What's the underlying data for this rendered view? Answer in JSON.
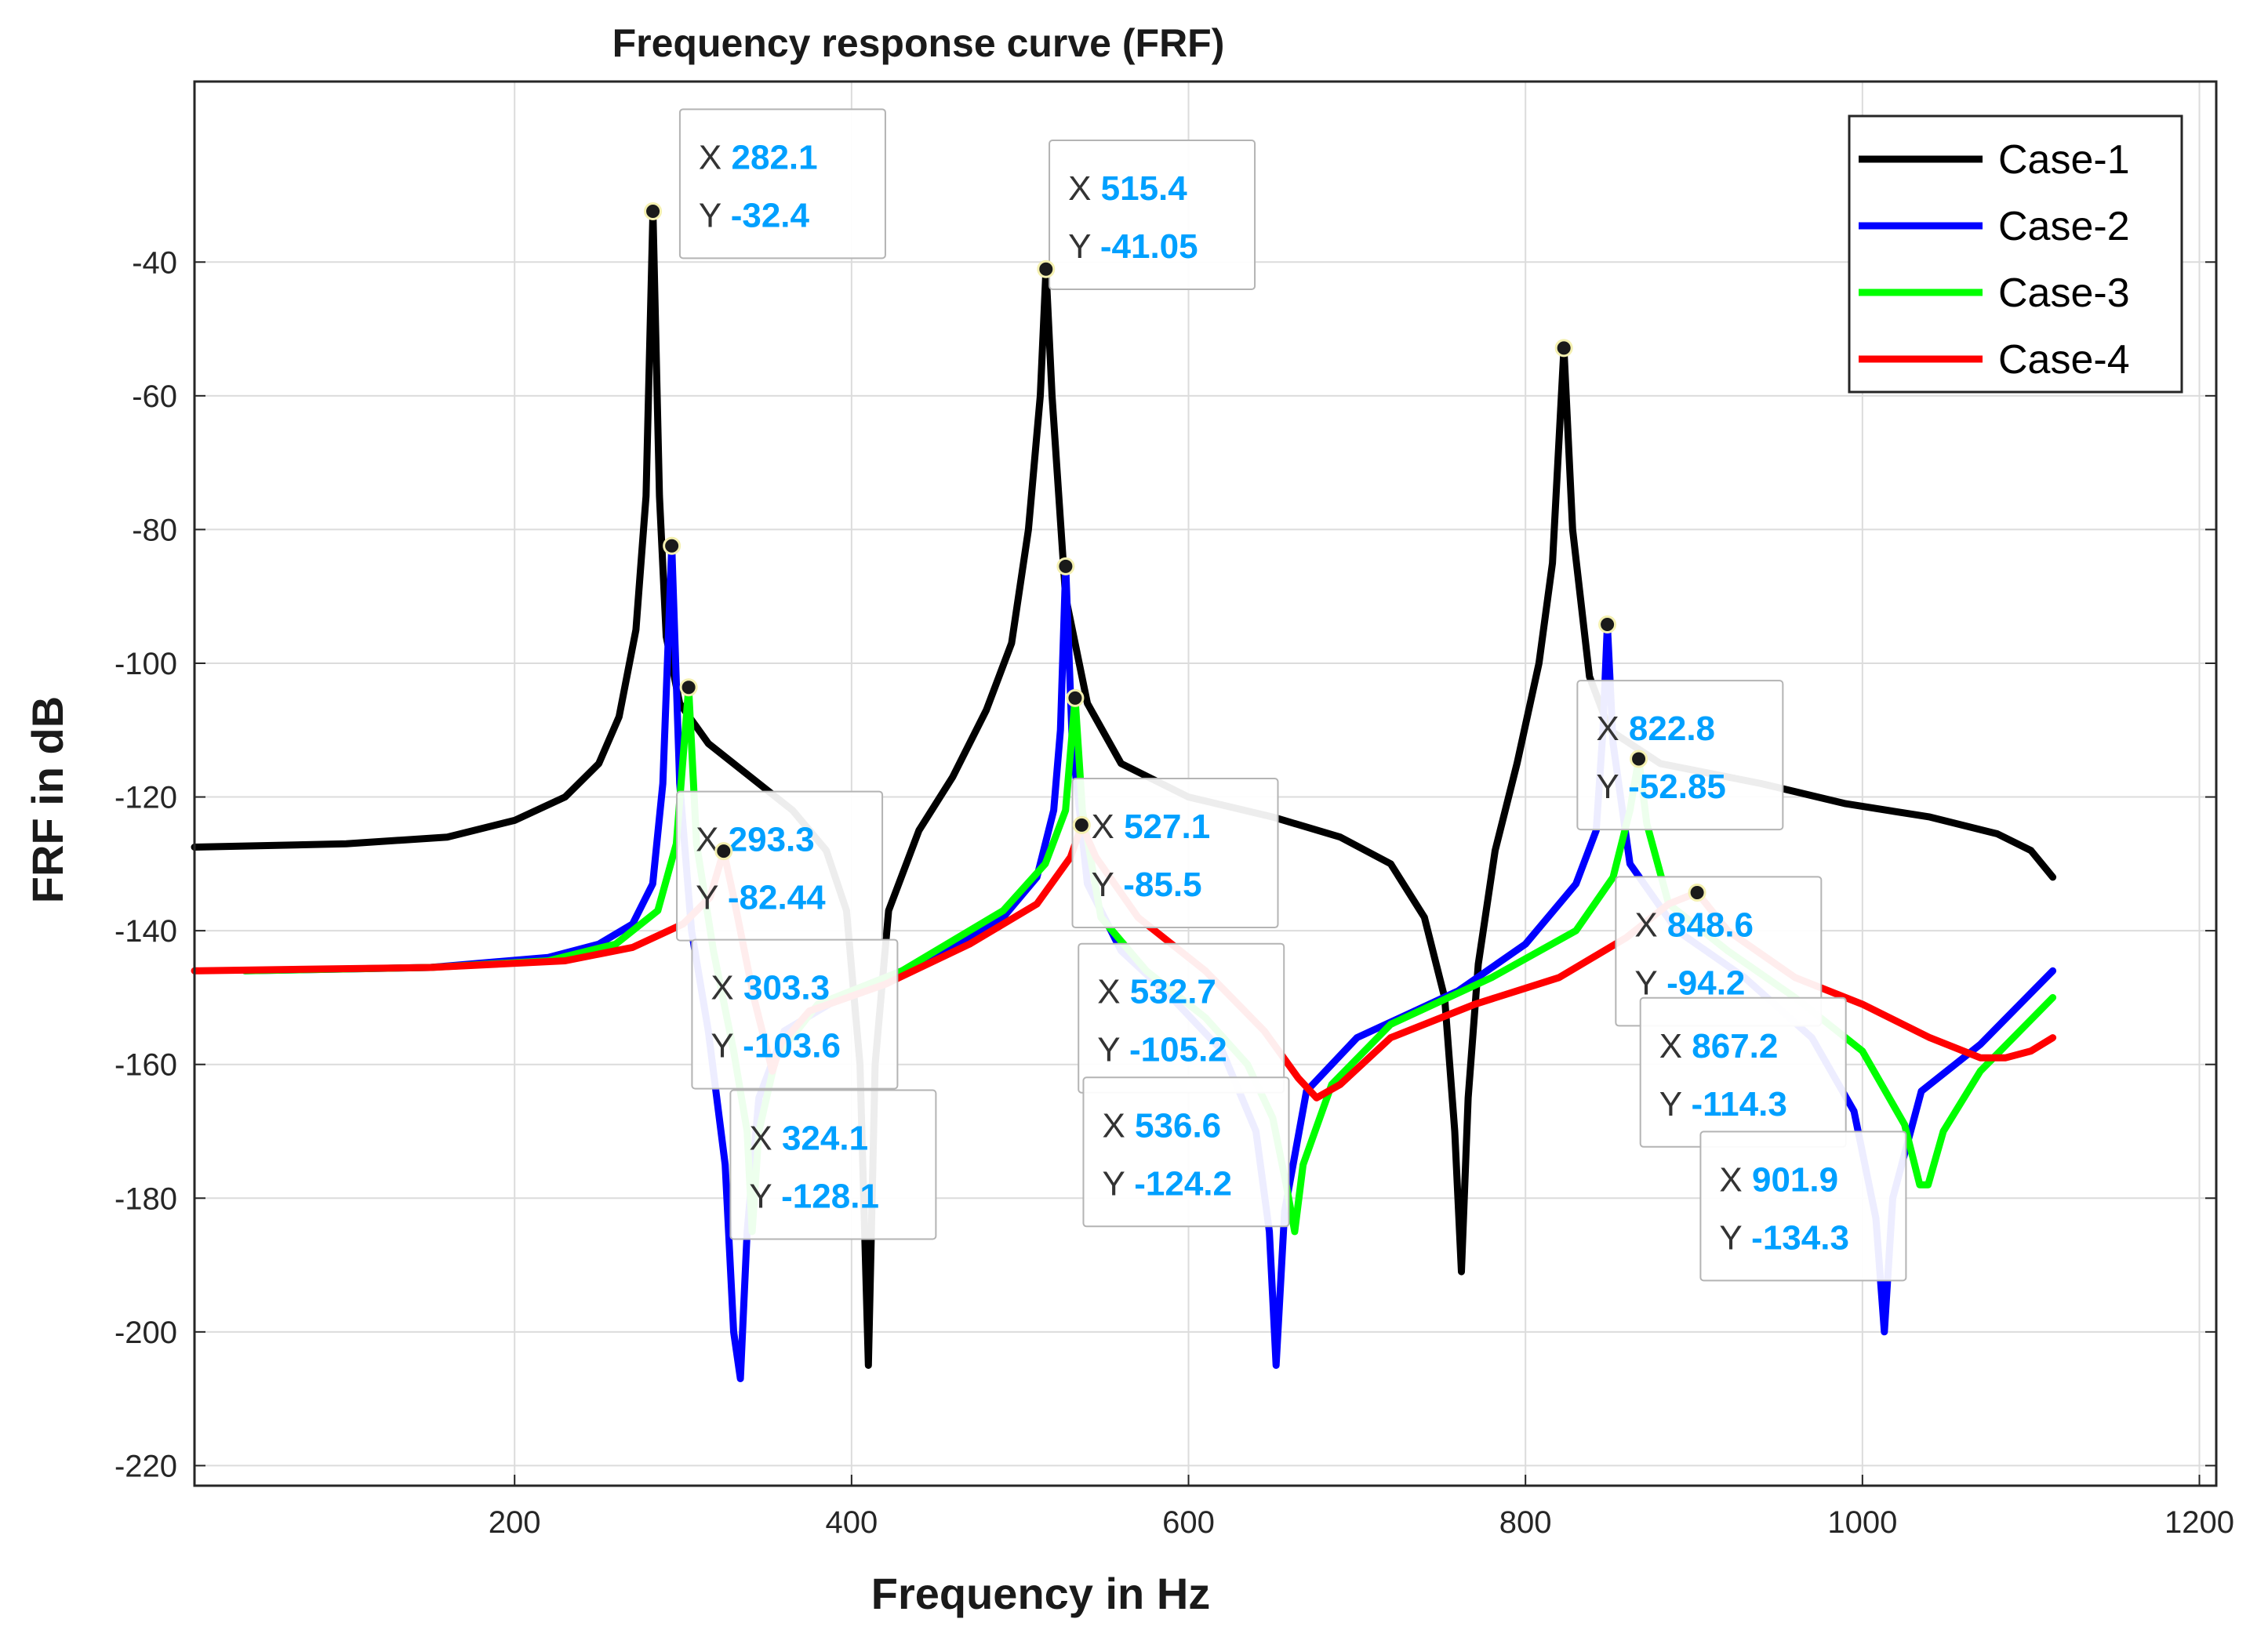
{
  "chart_data": {
    "type": "line",
    "title": "Frequency response curve (FRF)",
    "xlabel": "Frequency in Hz",
    "ylabel": "FRF in dB",
    "xlim": [
      10,
      1210
    ],
    "ylim": [
      -223,
      -13
    ],
    "xticks": [
      200,
      400,
      600,
      800,
      1000,
      1200
    ],
    "yticks": [
      -40,
      -60,
      -80,
      -100,
      -120,
      -140,
      -160,
      -180,
      -200,
      -220
    ],
    "grid": true,
    "legend_position": "top-right",
    "series": [
      {
        "name": "Case-1",
        "color": "#000000",
        "points": [
          [
            10,
            -127.5
          ],
          [
            100,
            -127
          ],
          [
            160,
            -126
          ],
          [
            200,
            -123.5
          ],
          [
            230,
            -120
          ],
          [
            250,
            -115
          ],
          [
            262,
            -108
          ],
          [
            272,
            -95
          ],
          [
            278,
            -75
          ],
          [
            282.1,
            -32.4
          ],
          [
            286,
            -75
          ],
          [
            290,
            -96
          ],
          [
            298,
            -106
          ],
          [
            315,
            -112
          ],
          [
            340,
            -117
          ],
          [
            365,
            -122
          ],
          [
            385,
            -128
          ],
          [
            397,
            -137
          ],
          [
            405,
            -160
          ],
          [
            410,
            -205
          ],
          [
            414,
            -160
          ],
          [
            422,
            -137
          ],
          [
            440,
            -125
          ],
          [
            460,
            -117
          ],
          [
            480,
            -107
          ],
          [
            495,
            -97
          ],
          [
            505,
            -80
          ],
          [
            512,
            -60
          ],
          [
            515.4,
            -41.05
          ],
          [
            519,
            -60
          ],
          [
            527,
            -90
          ],
          [
            540,
            -106
          ],
          [
            560,
            -115
          ],
          [
            600,
            -120
          ],
          [
            650,
            -123
          ],
          [
            690,
            -126
          ],
          [
            720,
            -130
          ],
          [
            740,
            -138
          ],
          [
            752,
            -150
          ],
          [
            758,
            -170
          ],
          [
            762,
            -191
          ],
          [
            766,
            -165
          ],
          [
            772,
            -145
          ],
          [
            782,
            -128
          ],
          [
            795,
            -115
          ],
          [
            808,
            -100
          ],
          [
            816,
            -85
          ],
          [
            822.8,
            -52.85
          ],
          [
            828,
            -80
          ],
          [
            838,
            -102
          ],
          [
            850,
            -110
          ],
          [
            880,
            -115
          ],
          [
            940,
            -118
          ],
          [
            990,
            -121
          ],
          [
            1040,
            -123
          ],
          [
            1080,
            -125.5
          ],
          [
            1100,
            -128
          ],
          [
            1113,
            -132
          ]
        ]
      },
      {
        "name": "Case-2",
        "color": "#0000ff",
        "points": [
          [
            40,
            -146
          ],
          [
            150,
            -145.5
          ],
          [
            220,
            -144
          ],
          [
            250,
            -142
          ],
          [
            270,
            -139
          ],
          [
            282,
            -133
          ],
          [
            288,
            -118
          ],
          [
            293.3,
            -82.44
          ],
          [
            298,
            -118
          ],
          [
            305,
            -140
          ],
          [
            315,
            -155
          ],
          [
            325,
            -175
          ],
          [
            330,
            -200
          ],
          [
            334,
            -207
          ],
          [
            338,
            -185
          ],
          [
            345,
            -165
          ],
          [
            360,
            -155
          ],
          [
            400,
            -149
          ],
          [
            450,
            -144
          ],
          [
            490,
            -138
          ],
          [
            510,
            -132
          ],
          [
            520,
            -122
          ],
          [
            524,
            -110
          ],
          [
            527.1,
            -85.5
          ],
          [
            531,
            -112
          ],
          [
            540,
            -133
          ],
          [
            560,
            -143
          ],
          [
            590,
            -150
          ],
          [
            620,
            -158
          ],
          [
            640,
            -170
          ],
          [
            648,
            -185
          ],
          [
            652,
            -205
          ],
          [
            657,
            -182
          ],
          [
            670,
            -164
          ],
          [
            700,
            -156
          ],
          [
            760,
            -149
          ],
          [
            800,
            -142
          ],
          [
            830,
            -133
          ],
          [
            842,
            -125
          ],
          [
            846,
            -110
          ],
          [
            848.6,
            -94.2
          ],
          [
            852,
            -112
          ],
          [
            862,
            -130
          ],
          [
            890,
            -140
          ],
          [
            930,
            -147
          ],
          [
            970,
            -156
          ],
          [
            995,
            -167
          ],
          [
            1008,
            -183
          ],
          [
            1013,
            -200
          ],
          [
            1018,
            -180
          ],
          [
            1035,
            -164
          ],
          [
            1070,
            -157
          ],
          [
            1113,
            -146
          ]
        ]
      },
      {
        "name": "Case-3",
        "color": "#00ff00",
        "points": [
          [
            40,
            -146
          ],
          [
            150,
            -145.5
          ],
          [
            220,
            -144.5
          ],
          [
            260,
            -142
          ],
          [
            285,
            -137
          ],
          [
            296,
            -127
          ],
          [
            303.3,
            -103.6
          ],
          [
            308,
            -127
          ],
          [
            318,
            -143
          ],
          [
            330,
            -158
          ],
          [
            338,
            -170
          ],
          [
            341,
            -185
          ],
          [
            345,
            -170
          ],
          [
            355,
            -159
          ],
          [
            380,
            -151
          ],
          [
            430,
            -146
          ],
          [
            490,
            -137
          ],
          [
            515,
            -130
          ],
          [
            527,
            -122
          ],
          [
            532.7,
            -105.2
          ],
          [
            537,
            -122
          ],
          [
            548,
            -138
          ],
          [
            575,
            -146
          ],
          [
            610,
            -153
          ],
          [
            635,
            -160
          ],
          [
            650,
            -168
          ],
          [
            658,
            -178
          ],
          [
            663,
            -185
          ],
          [
            668,
            -175
          ],
          [
            685,
            -163
          ],
          [
            720,
            -154
          ],
          [
            780,
            -147
          ],
          [
            830,
            -140
          ],
          [
            852,
            -132
          ],
          [
            862,
            -122
          ],
          [
            867.2,
            -114.3
          ],
          [
            872,
            -124
          ],
          [
            885,
            -136
          ],
          [
            920,
            -143
          ],
          [
            960,
            -150
          ],
          [
            1000,
            -158
          ],
          [
            1025,
            -169
          ],
          [
            1034,
            -178
          ],
          [
            1039,
            -178
          ],
          [
            1048,
            -170
          ],
          [
            1070,
            -161
          ],
          [
            1113,
            -150
          ]
        ]
      },
      {
        "name": "Case-4",
        "color": "#ff0000",
        "points": [
          [
            10,
            -146
          ],
          [
            150,
            -145.5
          ],
          [
            230,
            -144.5
          ],
          [
            270,
            -142.5
          ],
          [
            300,
            -139
          ],
          [
            316,
            -135
          ],
          [
            324.1,
            -128.1
          ],
          [
            330,
            -135
          ],
          [
            342,
            -150
          ],
          [
            350,
            -158
          ],
          [
            353,
            -161
          ],
          [
            358,
            -157
          ],
          [
            375,
            -152
          ],
          [
            420,
            -148
          ],
          [
            470,
            -142
          ],
          [
            510,
            -136
          ],
          [
            530,
            -129
          ],
          [
            536.6,
            -124.2
          ],
          [
            545,
            -129
          ],
          [
            570,
            -138
          ],
          [
            610,
            -146
          ],
          [
            645,
            -155
          ],
          [
            665,
            -162
          ],
          [
            676,
            -165
          ],
          [
            690,
            -163
          ],
          [
            720,
            -156
          ],
          [
            770,
            -151
          ],
          [
            820,
            -147
          ],
          [
            860,
            -141
          ],
          [
            885,
            -136
          ],
          [
            901.9,
            -134.3
          ],
          [
            920,
            -140
          ],
          [
            960,
            -147
          ],
          [
            1000,
            -151
          ],
          [
            1040,
            -156
          ],
          [
            1070,
            -159
          ],
          [
            1085,
            -159
          ],
          [
            1100,
            -158
          ],
          [
            1113,
            -156
          ]
        ]
      }
    ],
    "datatips": [
      {
        "x": "282.1",
        "y": "-32.4",
        "px": 282.1,
        "py": -32.4,
        "dx": 16,
        "dy": 4
      },
      {
        "x": "515.4",
        "y": "-41.05",
        "px": 515.4,
        "py": -41.05,
        "dx": 2,
        "dy": 8
      },
      {
        "x": "822.8",
        "y": "-52.85",
        "px": 822.8,
        "py": -52.85,
        "dx": 8,
        "dy": -61
      },
      {
        "x": "293.3",
        "y": "-82.44",
        "px": 293.3,
        "py": -82.44,
        "dx": 3,
        "dy": -48
      },
      {
        "x": "527.1",
        "y": "-85.5",
        "px": 527.1,
        "py": -85.5,
        "dx": 4,
        "dy": -43
      },
      {
        "x": "848.6",
        "y": "-94.2",
        "px": 848.6,
        "py": -94.2,
        "dx": 5,
        "dy": -49
      },
      {
        "x": "303.3",
        "y": "-103.6",
        "px": 303.3,
        "py": -103.6,
        "dx": 2,
        "dy": -49
      },
      {
        "x": "532.7",
        "y": "-105.2",
        "px": 532.7,
        "py": -105.2,
        "dx": 2,
        "dy": -48
      },
      {
        "x": "867.2",
        "y": "-114.3",
        "px": 867.2,
        "py": -114.3,
        "dx": 1,
        "dy": -47
      },
      {
        "x": "324.1",
        "y": "-128.1",
        "px": 324.1,
        "py": -128.1,
        "dx": 4,
        "dy": -47
      },
      {
        "x": "536.6",
        "y": "-124.2",
        "px": 536.6,
        "py": -124.2,
        "dx": 1,
        "dy": -49
      },
      {
        "x": "901.9",
        "y": "-134.3",
        "px": 901.9,
        "py": -134.3,
        "dx": 2,
        "dy": -47
      }
    ],
    "tip_x_prefix": "X",
    "tip_y_prefix": "Y",
    "tip_value_color": "#00a0ff",
    "grid_color": "#dcdcdc"
  }
}
